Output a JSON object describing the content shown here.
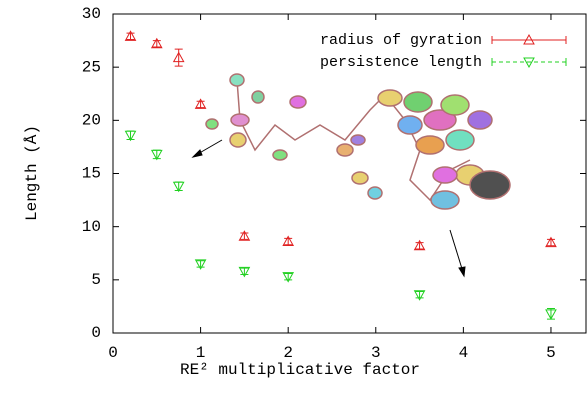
{
  "chart_data": {
    "type": "scatter",
    "xlabel": "RE² multiplicative factor",
    "ylabel": "Length (Å)",
    "xlim": [
      0,
      5.4
    ],
    "ylim": [
      0,
      30
    ],
    "xticks": [
      0,
      1,
      2,
      3,
      4,
      5
    ],
    "yticks": [
      0,
      5,
      10,
      15,
      20,
      25,
      30
    ],
    "grid": false,
    "legend": "top-right",
    "series": [
      {
        "name": "radius of gyration",
        "color": "#e02020",
        "marker": "triangle-up",
        "x": [
          0.2,
          0.5,
          0.75,
          1.0,
          1.5,
          2.0,
          3.5,
          5.0
        ],
        "values": [
          27.9,
          27.2,
          25.9,
          21.5,
          9.1,
          8.6,
          8.2,
          8.5
        ],
        "errors": [
          0.3,
          0.3,
          0.8,
          0.3,
          0.3,
          0.3,
          0.3,
          0.3
        ]
      },
      {
        "name": "persistence length",
        "color": "#20d020",
        "marker": "triangle-down",
        "x": [
          0.2,
          0.5,
          0.75,
          1.0,
          1.5,
          2.0,
          3.5,
          5.0
        ],
        "values": [
          18.6,
          16.8,
          13.8,
          6.5,
          5.8,
          5.3,
          3.6,
          1.8
        ],
        "errors": [
          0.4,
          0.4,
          0.4,
          0.3,
          0.3,
          0.3,
          0.3,
          0.5
        ]
      }
    ]
  }
}
